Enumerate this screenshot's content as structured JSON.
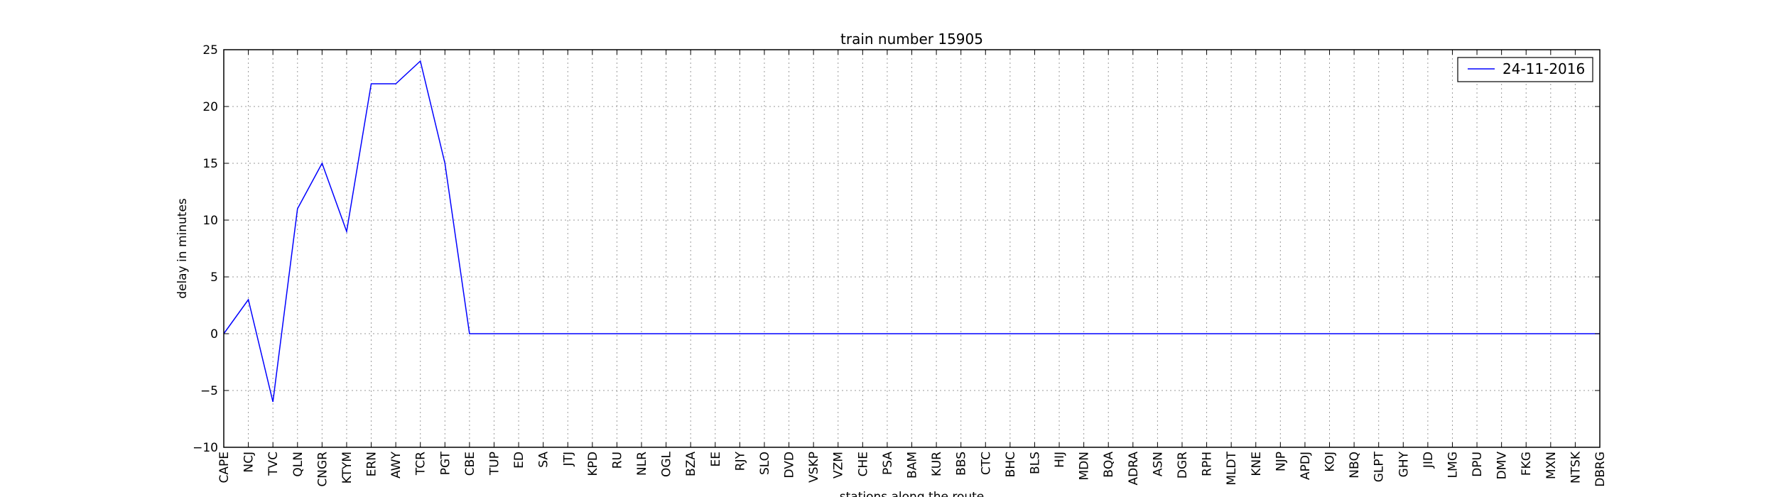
{
  "chart_data": {
    "type": "line",
    "title": "train number 15905",
    "xlabel": "stations along the route",
    "ylabel": "delay in minutes",
    "ylim": [
      -10,
      25
    ],
    "yticks": [
      -10,
      -5,
      0,
      5,
      10,
      15,
      20,
      25
    ],
    "ytick_labels": [
      "−10",
      "−5",
      "0",
      "5",
      "10",
      "15",
      "20",
      "25"
    ],
    "grid": true,
    "legend_position": "top-right",
    "categories": [
      "CAPE",
      "NCJ",
      "TVC",
      "QLN",
      "CNGR",
      "KTYM",
      "ERN",
      "AWY",
      "TCR",
      "PGT",
      "CBE",
      "TUP",
      "ED",
      "SA",
      "JTJ",
      "KPD",
      "RU",
      "NLR",
      "OGL",
      "BZA",
      "EE",
      "RJY",
      "SLO",
      "DVD",
      "VSKP",
      "VZM",
      "CHE",
      "PSA",
      "BAM",
      "KUR",
      "BBS",
      "CTC",
      "BHC",
      "BLS",
      "HIJ",
      "MDN",
      "BQA",
      "ADRA",
      "ASN",
      "DGR",
      "RPH",
      "MLDT",
      "KNE",
      "NJP",
      "APDJ",
      "KOJ",
      "NBQ",
      "GLPT",
      "GHY",
      "JID",
      "LMG",
      "DPU",
      "DMV",
      "FKG",
      "MXN",
      "NTSK",
      "DBRG"
    ],
    "series": [
      {
        "name": "24-11-2016",
        "color": "#0000ff",
        "values": [
          0,
          3,
          -6,
          11,
          15,
          9,
          22,
          22,
          24,
          15,
          0,
          0,
          0,
          0,
          0,
          0,
          0,
          0,
          0,
          0,
          0,
          0,
          0,
          0,
          0,
          0,
          0,
          0,
          0,
          0,
          0,
          0,
          0,
          0,
          0,
          0,
          0,
          0,
          0,
          0,
          0,
          0,
          0,
          0,
          0,
          0,
          0,
          0,
          0,
          0,
          0,
          0,
          0,
          0,
          0,
          0,
          0
        ]
      }
    ]
  }
}
